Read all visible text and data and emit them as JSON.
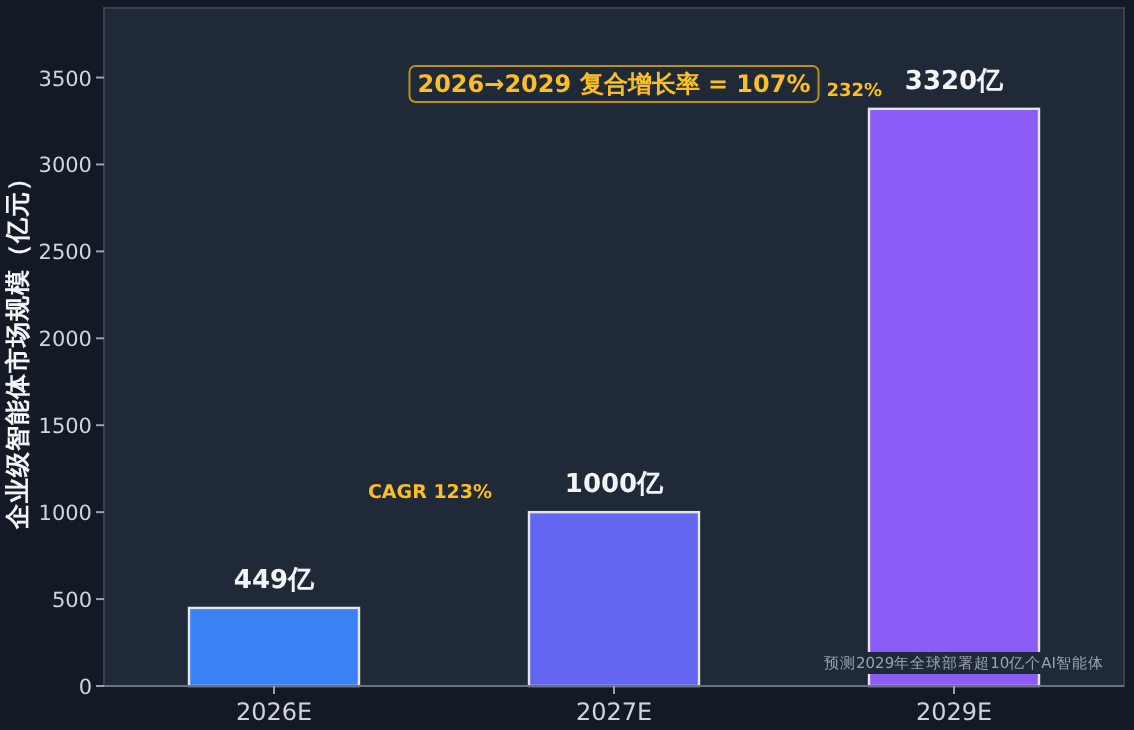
{
  "chart_data": {
    "type": "bar",
    "ylabel": "企业级智能体市场规模（亿元）",
    "categories": [
      "2026E",
      "2027E",
      "2029E"
    ],
    "values": [
      449,
      1000,
      3320
    ],
    "colors": [
      "#3b82f6",
      "#6366f1",
      "#8b5cf6"
    ],
    "value_labels": [
      "449亿",
      "1000亿",
      "3320亿"
    ],
    "ylim": [
      0,
      3900
    ],
    "yticks": [
      0,
      500,
      1000,
      1500,
      2000,
      2500,
      3000,
      3500
    ],
    "grid": false,
    "annotations": [
      "2026→2029 复合增长率 = 107%",
      "232%",
      "CAGR 123%",
      "预测2029年全球部署超10亿个AI智能体"
    ]
  }
}
